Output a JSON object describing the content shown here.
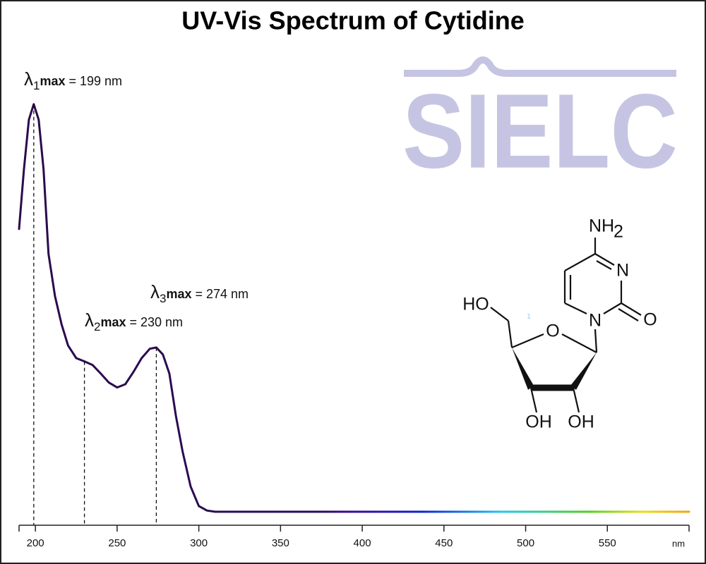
{
  "chart_data": {
    "type": "line",
    "title": "UV-Vis Spectrum of Cytidine",
    "xlabel": "nm",
    "x": [
      190,
      193,
      196,
      199,
      202,
      205,
      208,
      212,
      216,
      220,
      225,
      230,
      235,
      240,
      245,
      250,
      255,
      260,
      265,
      270,
      274,
      278,
      282,
      286,
      290,
      295,
      300,
      305,
      310,
      350,
      400,
      450,
      500,
      550,
      600
    ],
    "values": [
      0.694,
      0.84,
      0.962,
      1.0,
      0.962,
      0.84,
      0.633,
      0.529,
      0.46,
      0.408,
      0.377,
      0.369,
      0.36,
      0.339,
      0.317,
      0.305,
      0.313,
      0.343,
      0.377,
      0.4,
      0.403,
      0.386,
      0.339,
      0.235,
      0.149,
      0.062,
      0.014,
      0.003,
      0.0,
      0.0,
      0.0,
      0.0,
      0.0,
      0.0,
      0.0
    ],
    "color": "#2a0a4a",
    "xlim": [
      190,
      600
    ],
    "ylim": [
      -0.033,
      1.1
    ],
    "xticks": [
      200,
      250,
      300,
      350,
      400,
      450,
      500,
      550
    ],
    "annotations": [
      {
        "symbol": "λ",
        "index": "1",
        "suffix": "max",
        "text": "= 199 nm",
        "x": 199
      },
      {
        "symbol": "λ",
        "index": "2",
        "suffix": "max",
        "text": "= 230 nm",
        "x": 230
      },
      {
        "symbol": "λ",
        "index": "3",
        "suffix": "max",
        "text": "= 274 nm",
        "x": 274
      }
    ]
  },
  "watermark": "SIELC",
  "structure": {
    "labels": [
      "NH",
      "2",
      "N",
      "O",
      "N",
      "HO",
      "O",
      "OH",
      "OH",
      "1"
    ]
  }
}
